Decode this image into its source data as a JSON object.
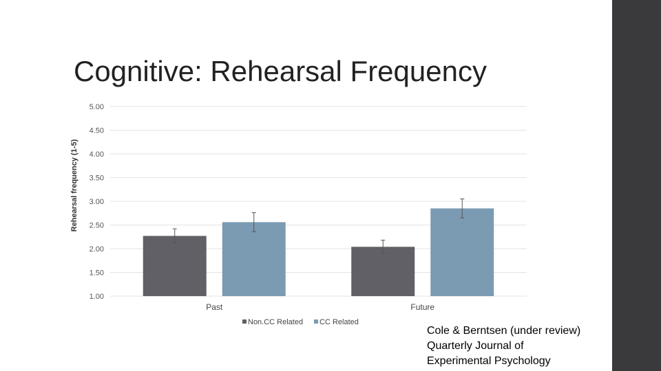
{
  "slide": {
    "title": "Cognitive: Rehearsal Frequency",
    "citation": [
      "Cole & Berntsen (under review)",
      "Quarterly Journal of",
      "Experimental Psychology"
    ],
    "side_bar_color": "#3a3a3c"
  },
  "chart_data": {
    "type": "bar",
    "title": "",
    "xlabel": "",
    "ylabel": "Rehearsal frequency (1-5)",
    "ylim": [
      1,
      5
    ],
    "yticks": [
      "1.00",
      "1.50",
      "2.00",
      "2.50",
      "3.00",
      "3.50",
      "4.00",
      "4.50",
      "5.00"
    ],
    "categories": [
      "Past",
      "Future"
    ],
    "series": [
      {
        "name": "Non.CC Related",
        "color": "#606066",
        "values": [
          2.27,
          2.04
        ],
        "errors": [
          0.15,
          0.14
        ]
      },
      {
        "name": "CC Related",
        "color": "#7b9bb3",
        "values": [
          2.56,
          2.85
        ],
        "errors": [
          0.2,
          0.2
        ]
      }
    ],
    "grid": true,
    "legend": "bottom"
  }
}
